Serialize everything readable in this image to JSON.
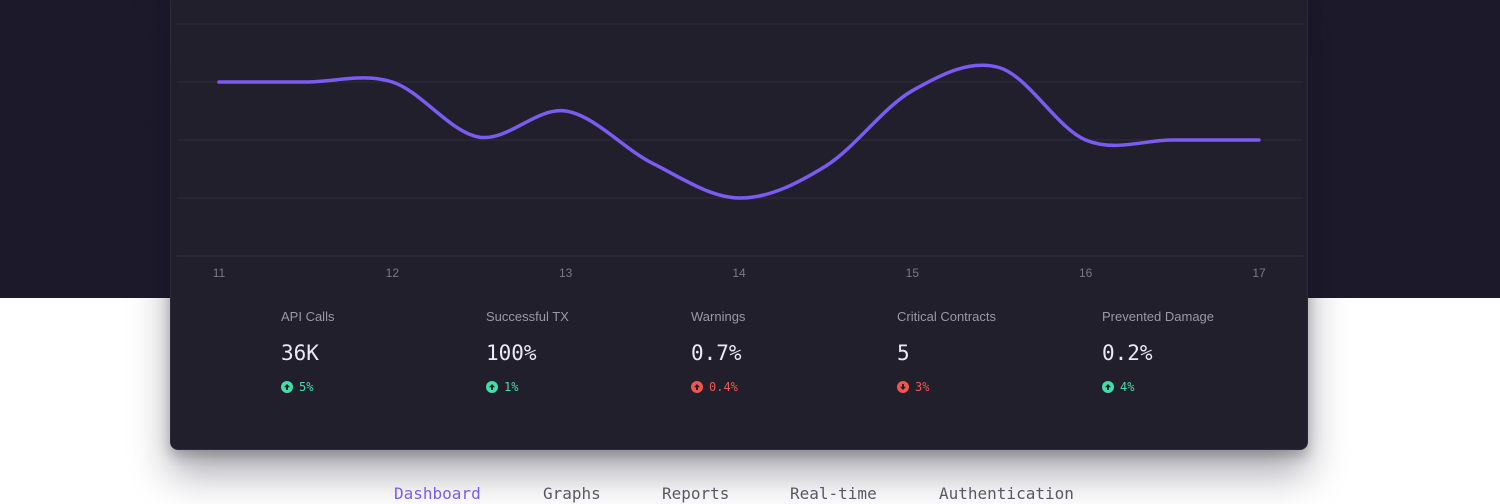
{
  "chart_data": {
    "type": "line",
    "x": [
      11,
      11.5,
      12,
      12.5,
      13,
      13.5,
      14,
      14.5,
      15,
      15.5,
      16,
      16.5,
      17
    ],
    "series": [
      {
        "values": [
          4,
          4,
          4,
          3.05,
          3.5,
          2.6,
          2,
          2.55,
          3.85,
          4.25,
          3,
          3,
          3
        ],
        "color": "#7b5cf0"
      }
    ],
    "x_ticks": [
      "11",
      "12",
      "13",
      "14",
      "15",
      "16",
      "17"
    ],
    "xlim": [
      11,
      17
    ],
    "ylim": [
      1,
      5
    ],
    "grid": true,
    "line_color": "#7b5cf0"
  },
  "stats": [
    {
      "label": "API Calls",
      "value": "36K",
      "delta": "5%",
      "trend": "up"
    },
    {
      "label": "Successful TX",
      "value": "100%",
      "delta": "1%",
      "trend": "up"
    },
    {
      "label": "Warnings",
      "value": "0.7%",
      "delta": "0.4%",
      "trend": "down"
    },
    {
      "label": "Critical Contracts",
      "value": "5",
      "delta": "3%",
      "trend": "down"
    },
    {
      "label": "Prevented Damage",
      "value": "0.2%",
      "delta": "4%",
      "trend": "up"
    }
  ],
  "nav": {
    "items": [
      "Dashboard",
      "Graphs",
      "Reports",
      "Real-time",
      "Authentication"
    ],
    "active": "Dashboard"
  },
  "colors": {
    "accent": "#7b5cf0",
    "positive": "#3ee0a6",
    "negative": "#f2564a"
  }
}
